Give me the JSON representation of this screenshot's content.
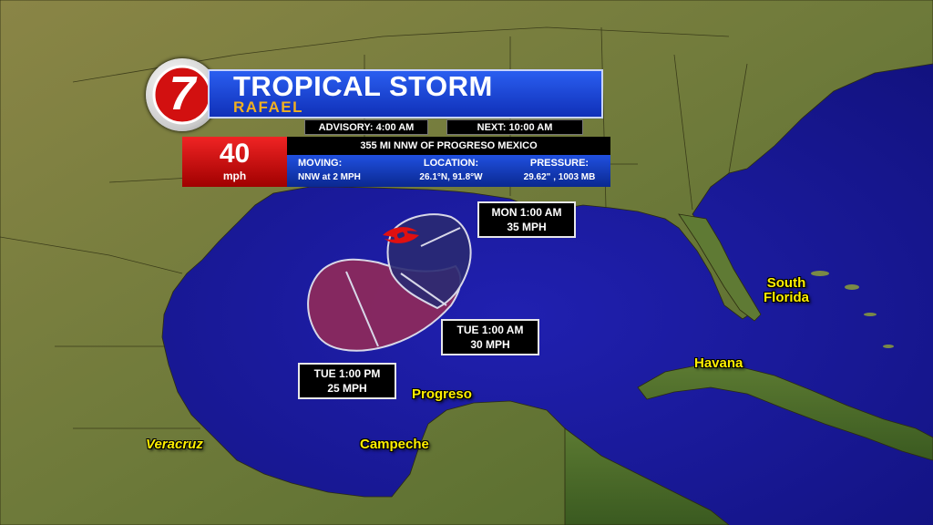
{
  "banner": {
    "logo_numeral": "7",
    "storm_type": "TROPICAL STORM",
    "storm_name": "RAFAEL"
  },
  "advisory": {
    "advisory_label": "ADVISORY: 4:00 AM",
    "next_label": "NEXT: 10:00 AM"
  },
  "intensity": {
    "speed_value": "40",
    "speed_unit": "mph"
  },
  "location_text": "355 MI NNW OF PROGRESO MEXICO",
  "details": {
    "moving_label": "MOVING:",
    "moving_value": "NNW at 2 MPH",
    "location_label": "LOCATION:",
    "location_value": "26.1°N, 91.8°W",
    "pressure_label": "PRESSURE:",
    "pressure_value": "29.62\" , 1003 MB"
  },
  "forecast_points": [
    {
      "time": "MON 1:00 AM",
      "wind": "35 MPH"
    },
    {
      "time": "TUE 1:00 AM",
      "wind": "30 MPH"
    },
    {
      "time": "TUE 1:00 PM",
      "wind": "25 MPH"
    }
  ],
  "places": {
    "south_florida_1": "South",
    "south_florida_2": "Florida",
    "havana": "Havana",
    "progreso": "Progreso",
    "campeche": "Campeche",
    "veracruz": "Veracruz"
  },
  "colors": {
    "gulf_water": "#1a1a9c",
    "land": "#7a7a3a",
    "cone_near": "#2a2a70",
    "cone_far": "#9a2a50",
    "banner_blue": "#1a40d0",
    "label_yellow": "#fff000",
    "speed_red": "#e01010"
  },
  "icons": {
    "storm_symbol": "tropical-storm-icon",
    "logo": "channel-7-logo"
  }
}
